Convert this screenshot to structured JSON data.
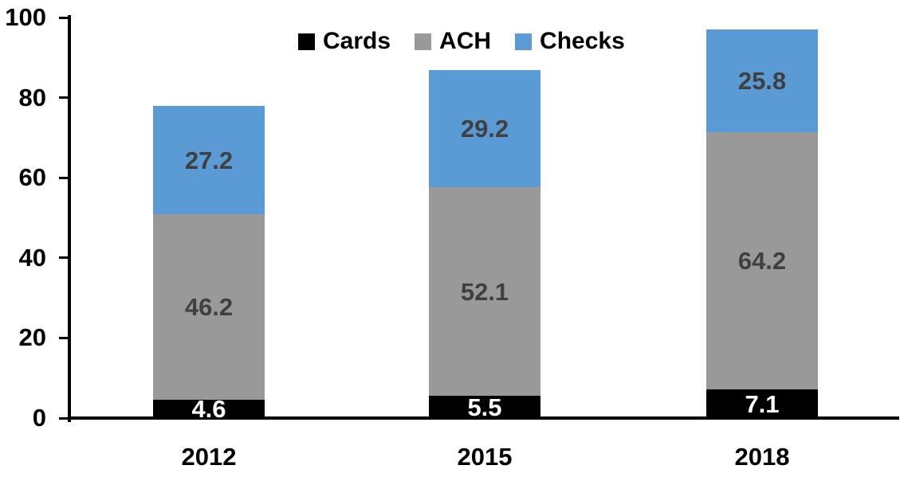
{
  "chart_data": {
    "type": "bar",
    "stacked": true,
    "title": "",
    "xlabel": "",
    "ylabel": "",
    "categories": [
      "2012",
      "2015",
      "2018"
    ],
    "series": [
      {
        "name": "Cards",
        "color": "#000000",
        "label_color": "#ffffff",
        "values": [
          4.6,
          5.5,
          7.1
        ]
      },
      {
        "name": "ACH",
        "color": "#999999",
        "label_color": "#404040",
        "values": [
          46.2,
          52.1,
          64.2
        ]
      },
      {
        "name": "Checks",
        "color": "#5b9bd5",
        "label_color": "#404040",
        "values": [
          27.2,
          29.2,
          25.8
        ]
      }
    ],
    "totals": [
      78.0,
      86.8,
      97.1
    ],
    "ylim": [
      0,
      100
    ],
    "yticks": [
      0,
      20,
      40,
      60,
      80,
      100
    ],
    "grid": false,
    "legend_position": "top-center",
    "axis_color": "#000000",
    "background_color": "#ffffff"
  }
}
